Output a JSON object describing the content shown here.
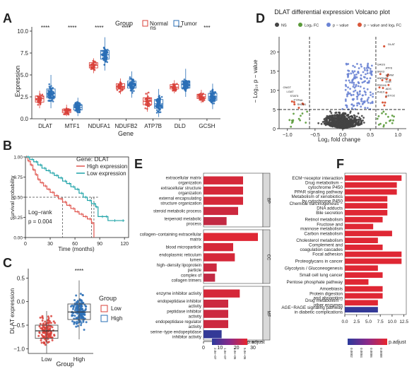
{
  "colors": {
    "normal": "#d9413a",
    "tumor": "#2a6fb6",
    "high": "#e0564f",
    "low": "#1fa3a8",
    "bar_high": "#e8262e",
    "bar_low": "#2b3a9c",
    "volcano_gray": "#444444",
    "volcano_green": "#5a9a3a",
    "volcano_blue": "#6b84d4",
    "volcano_red": "#d9573a"
  },
  "panel_labels": [
    "A",
    "B",
    "C",
    "D",
    "E",
    "F"
  ],
  "chart_data": [
    {
      "id": "A",
      "type": "box",
      "legend_title": "Group",
      "legend": [
        "Normal",
        "Tumor"
      ],
      "xlabel": "Gene",
      "ylabel": "Expression",
      "ylim": [
        0,
        10
      ],
      "yticks": [
        "0.0",
        "2.5",
        "5.0",
        "7.5",
        "10.0"
      ],
      "categories": [
        "DLAT",
        "MTF1",
        "NDUFA1",
        "NDUFB2",
        "ATP7B",
        "DLD",
        "GCSH"
      ],
      "significance": [
        "****",
        "****",
        "****",
        "****",
        "ns",
        "**",
        "***"
      ],
      "series": [
        {
          "name": "Normal",
          "median": [
            2.3,
            0.9,
            6.1,
            3.7,
            2.0,
            3.6,
            2.5
          ],
          "q1": [
            1.9,
            0.7,
            5.8,
            3.4,
            1.6,
            3.4,
            2.3
          ],
          "q3": [
            2.6,
            1.1,
            6.4,
            4.0,
            2.4,
            3.9,
            2.8
          ],
          "min": [
            1.2,
            0.3,
            5.2,
            2.8,
            0.8,
            2.9,
            1.8
          ],
          "max": [
            3.2,
            1.6,
            6.9,
            4.6,
            3.0,
            4.4,
            3.3
          ]
        },
        {
          "name": "Tumor",
          "median": [
            2.9,
            1.3,
            7.3,
            3.9,
            1.7,
            3.9,
            2.5
          ],
          "q1": [
            2.4,
            1.0,
            6.8,
            3.5,
            1.2,
            3.5,
            2.1
          ],
          "q3": [
            3.4,
            1.6,
            7.8,
            4.3,
            2.2,
            4.3,
            2.9
          ],
          "min": [
            1.2,
            0.3,
            5.5,
            2.4,
            0.2,
            2.5,
            1.1
          ],
          "max": [
            5.0,
            2.4,
            9.3,
            5.4,
            3.4,
            5.7,
            4.0
          ]
        }
      ]
    },
    {
      "id": "B",
      "type": "line",
      "legend_title": "Gene: DLAT",
      "legend": [
        "High expression",
        "Low expression"
      ],
      "xlabel": "Time (months)",
      "ylabel": "Survival probability",
      "xticks": [
        0,
        30,
        60,
        90,
        120
      ],
      "yticks": [
        "0.00",
        "0.25",
        "0.50",
        "0.75",
        "1.00"
      ],
      "xlim": [
        0,
        125
      ],
      "ylim": [
        0,
        1
      ],
      "annotation": [
        "Log−rank",
        "p = 0.004"
      ],
      "series": [
        {
          "name": "High expression",
          "x": [
            0,
            3,
            6,
            9,
            12,
            15,
            18,
            22,
            26,
            30,
            35,
            40,
            45,
            50,
            55,
            60,
            65,
            70,
            75,
            80,
            83
          ],
          "y": [
            1.0,
            0.95,
            0.9,
            0.84,
            0.78,
            0.72,
            0.68,
            0.64,
            0.6,
            0.56,
            0.52,
            0.48,
            0.44,
            0.4,
            0.36,
            0.32,
            0.29,
            0.26,
            0.23,
            0.18,
            0.0
          ]
        },
        {
          "name": "Low expression",
          "x": [
            0,
            5,
            10,
            15,
            20,
            25,
            30,
            35,
            40,
            45,
            50,
            55,
            60,
            65,
            70,
            75,
            80,
            85,
            88,
            95,
            100,
            110,
            120
          ],
          "y": [
            1.0,
            0.97,
            0.94,
            0.9,
            0.86,
            0.83,
            0.8,
            0.77,
            0.74,
            0.7,
            0.67,
            0.63,
            0.6,
            0.55,
            0.5,
            0.46,
            0.42,
            0.38,
            0.26,
            0.26,
            0.21,
            0.21,
            0.21
          ]
        }
      ],
      "median_lines_x": [
        45,
        80,
        83
      ]
    },
    {
      "id": "C",
      "type": "box",
      "legend_title": "Group",
      "legend": [
        "Low",
        "High"
      ],
      "xlabel": "Group",
      "ylabel": "DLAT expression",
      "categories": [
        "Low",
        "High"
      ],
      "significance": [
        "****"
      ],
      "ylim": [
        -1.1,
        0.7
      ],
      "yticks": [
        "0.5",
        "0.0",
        "−0.5",
        "−1.0"
      ],
      "series": [
        {
          "name": "Low",
          "median": [
            -0.62
          ],
          "q1": [
            -0.78
          ],
          "q3": [
            -0.5
          ],
          "min": [
            -1.1
          ],
          "max": [
            -0.2
          ]
        },
        {
          "name": "High",
          "median": [
            -0.22
          ],
          "q1": [
            -0.38
          ],
          "q3": [
            -0.05
          ],
          "min": [
            -0.8
          ],
          "max": [
            0.45
          ]
        }
      ]
    },
    {
      "id": "D",
      "type": "scatter",
      "title": "DLAT differential expression Volcano plot",
      "legend": [
        "NS",
        "Log₂ FC",
        "p − value",
        "p − value and log₂ FC"
      ],
      "xlabel": "Log₂ fold change",
      "ylabel": "− Log₁₀ p − value",
      "xticks": [
        "−1.0",
        "−0.5",
        "0.0",
        "0.5",
        "1.0"
      ],
      "yticks": [
        0,
        5,
        10,
        15,
        20
      ],
      "xlim": [
        -1.15,
        1.15
      ],
      "ylim": [
        0,
        24
      ],
      "cutoff_x": [
        -0.6,
        0.6
      ],
      "cutoff_y": 5,
      "labeled_genes": {
        "right": [
          "DLAT",
          "GAGS",
          "ATF6",
          "SNX3",
          "ADAM",
          "HNRNP1",
          "KSR",
          "PRDX6",
          "ADS",
          "PHEX",
          "GSTO2"
        ],
        "left": [
          "GNGT",
          "LGAT",
          "STAT5",
          "PTPN6",
          "SH2D1"
        ]
      }
    },
    {
      "id": "E",
      "type": "bar",
      "orientation": "horizontal",
      "xticks": [
        0,
        10,
        20,
        30
      ],
      "xlim": [
        0,
        36
      ],
      "legend_title": "p.adjust",
      "colorbar_ticks": [
        "2.0e−07",
        "1.0e−07",
        "1.0e−06",
        "5.0e−06"
      ],
      "facets": [
        {
          "name": "BP",
          "categories": [
            "extracellular matrix organization",
            "extracellular structure organization",
            "external encapsulating structure organization",
            "steroid metabolic process",
            "terpenoid metabolic process"
          ],
          "values": [
            24,
            24,
            24,
            21,
            14
          ],
          "padj_level": [
            0.9,
            0.9,
            0.9,
            0.85,
            0.8
          ]
        },
        {
          "name": "CC",
          "categories": [
            "collagen−containing extracellular matrix",
            "blood microparticle",
            "endoplasmic reticulum lumen",
            "high−density lipoprotein particle",
            "complex of collagen trimers"
          ],
          "values": [
            33,
            18,
            19,
            8,
            7
          ],
          "padj_level": [
            0.95,
            0.9,
            0.9,
            0.85,
            0.8
          ]
        },
        {
          "name": "MF",
          "categories": [
            "enzyme inhibitor activity",
            "endopeptidase inhibitor activity",
            "peptidase inhibitor activity",
            "endopeptidase regulator activity",
            "serine−type endopeptidase inhibitor activity"
          ],
          "values": [
            22,
            15,
            15,
            15,
            11
          ],
          "padj_level": [
            0.9,
            0.85,
            0.85,
            0.85,
            0.05
          ]
        }
      ]
    },
    {
      "id": "F",
      "type": "bar",
      "orientation": "horizontal",
      "xticks": [
        "0.0",
        "2.5",
        "5.0",
        "7.5",
        "10.0",
        "12.5"
      ],
      "xlim": [
        0,
        13
      ],
      "legend_title": "p.adjust",
      "colorbar_ticks": [
        "0.0002",
        "0.0004",
        "0.0006",
        "0.0008"
      ],
      "categories": [
        "ECM−receptor interaction",
        "Drug metabolism − cytochrome P450",
        "PPAR signaling pathway",
        "Metabolism of xenobiotics by cytochrome P450",
        "Chemical carcinogenesis − DNA adducts",
        "Bile secretion",
        "Retinol metabolism",
        "Fructose and mannose metabolism",
        "Carbon metabolism",
        "Cholesterol metabolism",
        "Complement and coagulation cascades",
        "Focal adhesion",
        "Proteoglycans in cancer",
        "Glycolysis / Gluconeogenesis",
        "Small cell lung cancer",
        "Pentose phosphate pathway",
        "Amoebiasis",
        "Protein digestion and absorption",
        "Drug metabolism − other enzymes",
        "AGE−RAGE signaling pathway in diabetic complications"
      ],
      "values": [
        12,
        11,
        11,
        9,
        9,
        9,
        8,
        6,
        10,
        7,
        8,
        12,
        12,
        7,
        8,
        5,
        8,
        8,
        7,
        7
      ],
      "padj_level": [
        0.95,
        0.95,
        0.95,
        0.95,
        0.95,
        0.95,
        0.95,
        0.95,
        0.95,
        0.95,
        0.95,
        0.95,
        0.95,
        0.95,
        0.95,
        0.95,
        0.95,
        0.95,
        0.95,
        0.05
      ]
    }
  ]
}
